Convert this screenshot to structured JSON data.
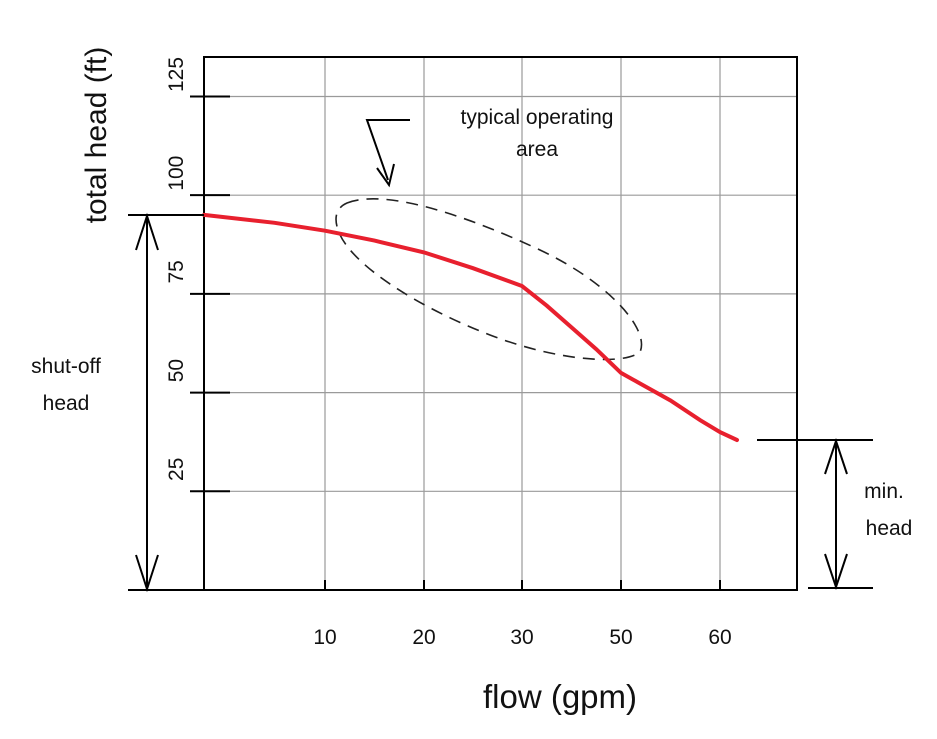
{
  "chart_data": {
    "type": "line",
    "xlabel": "flow (gpm)",
    "ylabel": "total head (ft)",
    "x_ticks": [
      10,
      20,
      30,
      50,
      60
    ],
    "y_ticks": [
      25,
      50,
      75,
      100,
      125
    ],
    "xlim": [
      -2,
      70
    ],
    "ylim": [
      0,
      135
    ],
    "grid": true,
    "series": [
      {
        "color": "#e8202e",
        "x": [
          -2,
          5,
          10,
          15,
          20,
          25,
          30,
          35,
          40,
          45,
          50,
          55,
          58,
          60,
          62
        ],
        "y": [
          95,
          93,
          91,
          88.5,
          85.5,
          81.5,
          77,
          72,
          66.5,
          61,
          55,
          48,
          43,
          40,
          38
        ]
      }
    ],
    "annotations": {
      "operating_area": {
        "label_line1": "typical operating",
        "label_line2": "area",
        "style": "dashed-ellipse"
      },
      "shutoff_head": {
        "label_line1": "shut-off",
        "label_line2": "head",
        "value": 95
      },
      "min_head": {
        "label_line1": "min.",
        "label_line2": "head",
        "value": 38
      }
    }
  }
}
